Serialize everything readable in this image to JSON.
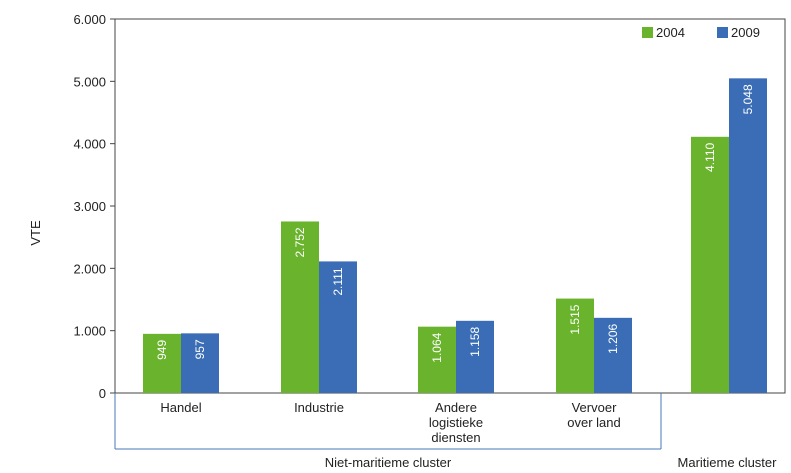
{
  "chart_data": {
    "type": "bar",
    "ylabel": "VTE",
    "ylim": [
      0,
      6000
    ],
    "y_ticks": [
      {
        "value": 0,
        "label": "0"
      },
      {
        "value": 1000,
        "label": "1.000"
      },
      {
        "value": 2000,
        "label": "2.000"
      },
      {
        "value": 3000,
        "label": "3.000"
      },
      {
        "value": 4000,
        "label": "4.000"
      },
      {
        "value": 5000,
        "label": "5.000"
      },
      {
        "value": 6000,
        "label": "6.000"
      }
    ],
    "categories": [
      {
        "label_lines": [
          "Handel"
        ]
      },
      {
        "label_lines": [
          "Industrie"
        ]
      },
      {
        "label_lines": [
          "Andere",
          "logistieke",
          "diensten"
        ]
      },
      {
        "label_lines": [
          "Vervoer",
          "over land"
        ]
      },
      {
        "label_lines": []
      }
    ],
    "groups": [
      {
        "label": "Niet-maritieme cluster",
        "categories": [
          0,
          1,
          2,
          3
        ]
      },
      {
        "label": "Maritieme cluster",
        "categories": [
          4
        ]
      }
    ],
    "series": [
      {
        "name": "2004",
        "color": "#6ab42d",
        "values": [
          949,
          2752,
          1064,
          1515,
          4110
        ],
        "labels": [
          "949",
          "2.752",
          "1.064",
          "1.515",
          "4.110"
        ]
      },
      {
        "name": "2009",
        "color": "#3a6db5",
        "values": [
          957,
          2111,
          1158,
          1206,
          5048
        ],
        "labels": [
          "957",
          "2.111",
          "1.158",
          "1.206",
          "5.048"
        ]
      }
    ],
    "legend_position": "top-right",
    "grid": false
  }
}
